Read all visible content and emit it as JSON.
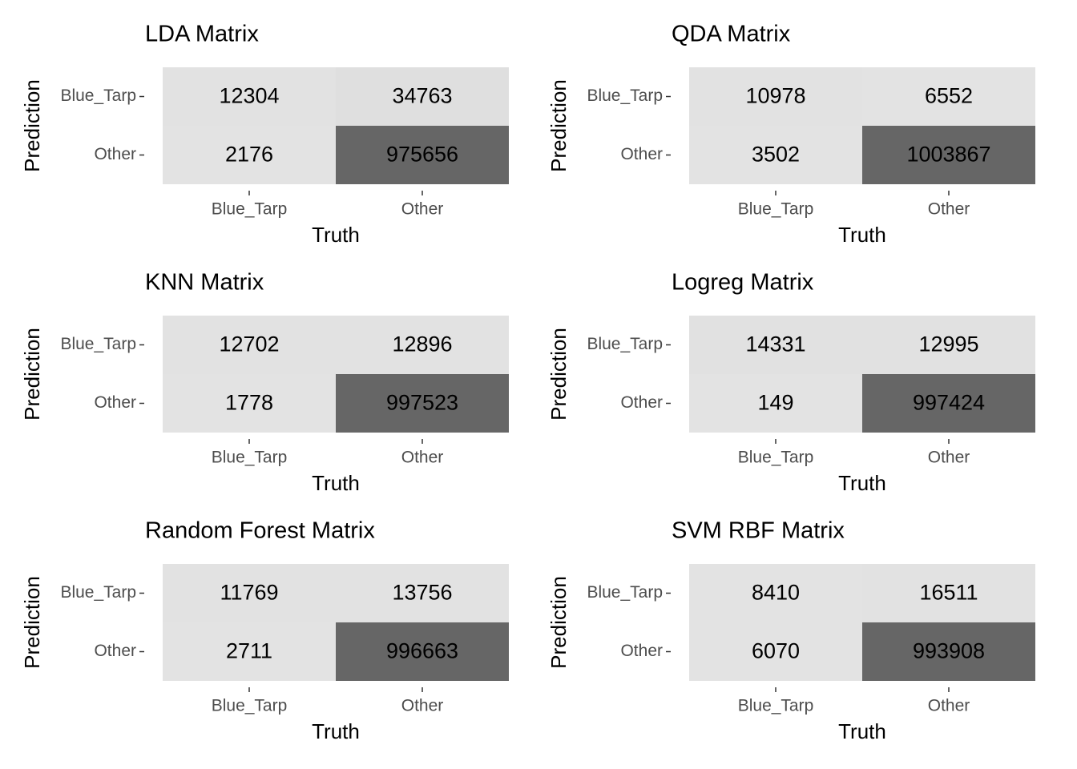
{
  "chart_data": [
    {
      "type": "heatmap",
      "title": "LDA Matrix",
      "x_label": "Truth",
      "y_label": "Prediction",
      "x_categories": [
        "Blue_Tarp",
        "Other"
      ],
      "y_categories": [
        "Blue_Tarp",
        "Other"
      ],
      "values": [
        [
          12304,
          34763
        ],
        [
          2176,
          975656
        ]
      ],
      "color_low": "#e3e3e3",
      "color_high": "#666666"
    },
    {
      "type": "heatmap",
      "title": "QDA Matrix",
      "x_label": "Truth",
      "y_label": "Prediction",
      "x_categories": [
        "Blue_Tarp",
        "Other"
      ],
      "y_categories": [
        "Blue_Tarp",
        "Other"
      ],
      "values": [
        [
          10978,
          6552
        ],
        [
          3502,
          1003867
        ]
      ],
      "color_low": "#e3e3e3",
      "color_high": "#666666"
    },
    {
      "type": "heatmap",
      "title": "KNN Matrix",
      "x_label": "Truth",
      "y_label": "Prediction",
      "x_categories": [
        "Blue_Tarp",
        "Other"
      ],
      "y_categories": [
        "Blue_Tarp",
        "Other"
      ],
      "values": [
        [
          12702,
          12896
        ],
        [
          1778,
          997523
        ]
      ],
      "color_low": "#e3e3e3",
      "color_high": "#666666"
    },
    {
      "type": "heatmap",
      "title": "Logreg Matrix",
      "x_label": "Truth",
      "y_label": "Prediction",
      "x_categories": [
        "Blue_Tarp",
        "Other"
      ],
      "y_categories": [
        "Blue_Tarp",
        "Other"
      ],
      "values": [
        [
          14331,
          12995
        ],
        [
          149,
          997424
        ]
      ],
      "color_low": "#e3e3e3",
      "color_high": "#666666"
    },
    {
      "type": "heatmap",
      "title": "Random Forest Matrix",
      "x_label": "Truth",
      "y_label": "Prediction",
      "x_categories": [
        "Blue_Tarp",
        "Other"
      ],
      "y_categories": [
        "Blue_Tarp",
        "Other"
      ],
      "values": [
        [
          11769,
          13756
        ],
        [
          2711,
          996663
        ]
      ],
      "color_low": "#e3e3e3",
      "color_high": "#666666"
    },
    {
      "type": "heatmap",
      "title": "SVM RBF Matrix",
      "x_label": "Truth",
      "y_label": "Prediction",
      "x_categories": [
        "Blue_Tarp",
        "Other"
      ],
      "y_categories": [
        "Blue_Tarp",
        "Other"
      ],
      "values": [
        [
          8410,
          16511
        ],
        [
          6070,
          993908
        ]
      ],
      "color_low": "#e3e3e3",
      "color_high": "#666666"
    }
  ]
}
